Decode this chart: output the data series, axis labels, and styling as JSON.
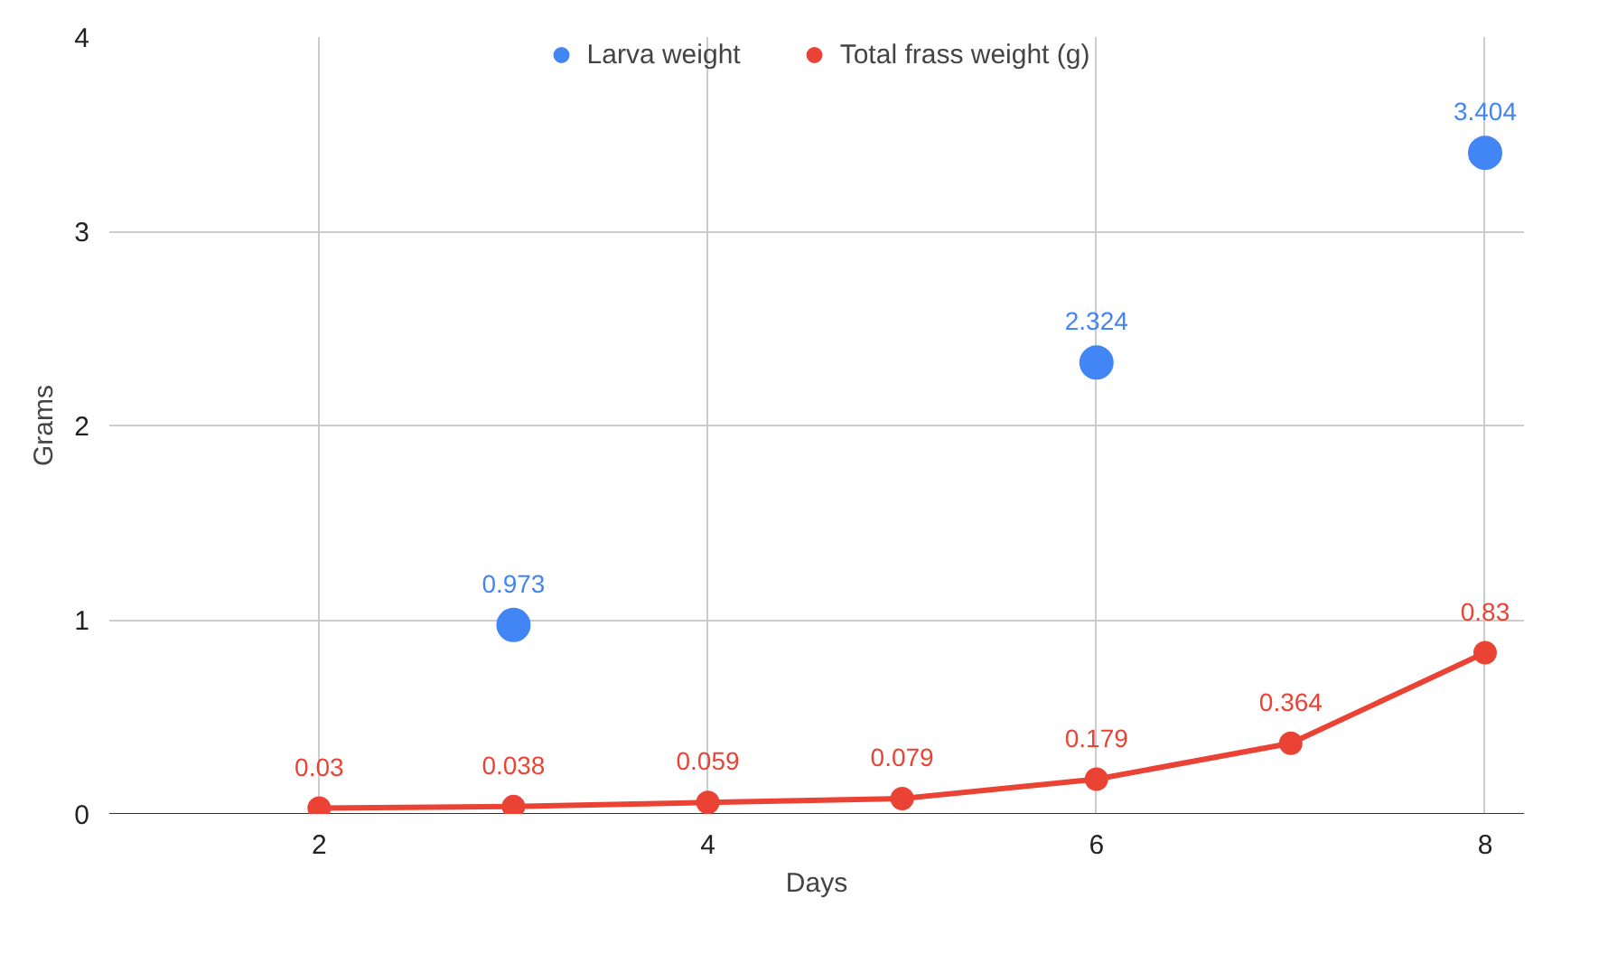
{
  "chart_data": {
    "type": "line",
    "xlabel": "Days",
    "ylabel": "Grams",
    "xlim": [
      0.92,
      8.2
    ],
    "xticks": [
      2,
      4,
      6,
      8
    ],
    "ylim": [
      0,
      4
    ],
    "yticks": [
      0,
      1,
      2,
      3,
      4
    ],
    "grid": true,
    "legend": "top",
    "marker": "circle",
    "data_labels": true,
    "series": [
      {
        "name": "Larva weight",
        "type": "scatter",
        "color": "#4285f4",
        "x": [
          3,
          6,
          8
        ],
        "values": [
          0.973,
          2.324,
          3.404
        ]
      },
      {
        "name": "Total frass weight (g)",
        "type": "line",
        "color": "#ea4335",
        "x": [
          2,
          3,
          4,
          5,
          6,
          7,
          8
        ],
        "values": [
          0.03,
          0.038,
          0.059,
          0.079,
          0.179,
          0.364,
          0.83
        ]
      }
    ]
  }
}
